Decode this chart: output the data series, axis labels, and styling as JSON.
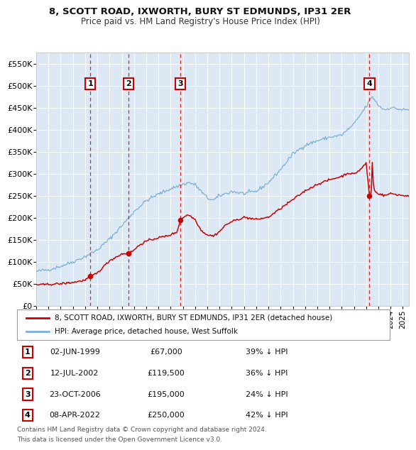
{
  "title1": "8, SCOTT ROAD, IXWORTH, BURY ST EDMUNDS, IP31 2ER",
  "title2": "Price paid vs. HM Land Registry's House Price Index (HPI)",
  "bg_color": "#dce9f5",
  "grid_color": "#ffffff",
  "red_line_color": "#cc0000",
  "blue_line_color": "#7bafd4",
  "transactions": [
    {
      "num": 1,
      "date_str": "02-JUN-1999",
      "date_x": 1999.42,
      "price": 67000,
      "pct": "39%",
      "dir": "↓"
    },
    {
      "num": 2,
      "date_str": "12-JUL-2002",
      "date_x": 2002.53,
      "price": 119500,
      "pct": "36%",
      "dir": "↓"
    },
    {
      "num": 3,
      "date_str": "23-OCT-2006",
      "date_x": 2006.81,
      "price": 195000,
      "pct": "24%",
      "dir": "↓"
    },
    {
      "num": 4,
      "date_str": "08-APR-2022",
      "date_x": 2022.27,
      "price": 250000,
      "pct": "42%",
      "dir": "↓"
    }
  ],
  "legend_line1": "8, SCOTT ROAD, IXWORTH, BURY ST EDMUNDS, IP31 2ER (detached house)",
  "legend_line2": "HPI: Average price, detached house, West Suffolk",
  "footnote1": "Contains HM Land Registry data © Crown copyright and database right 2024.",
  "footnote2": "This data is licensed under the Open Government Licence v3.0.",
  "xmin": 1995,
  "xmax": 2025.5,
  "ymin": 0,
  "ymax": 575000,
  "yticks": [
    0,
    50000,
    100000,
    150000,
    200000,
    250000,
    300000,
    350000,
    400000,
    450000,
    500000,
    550000
  ]
}
